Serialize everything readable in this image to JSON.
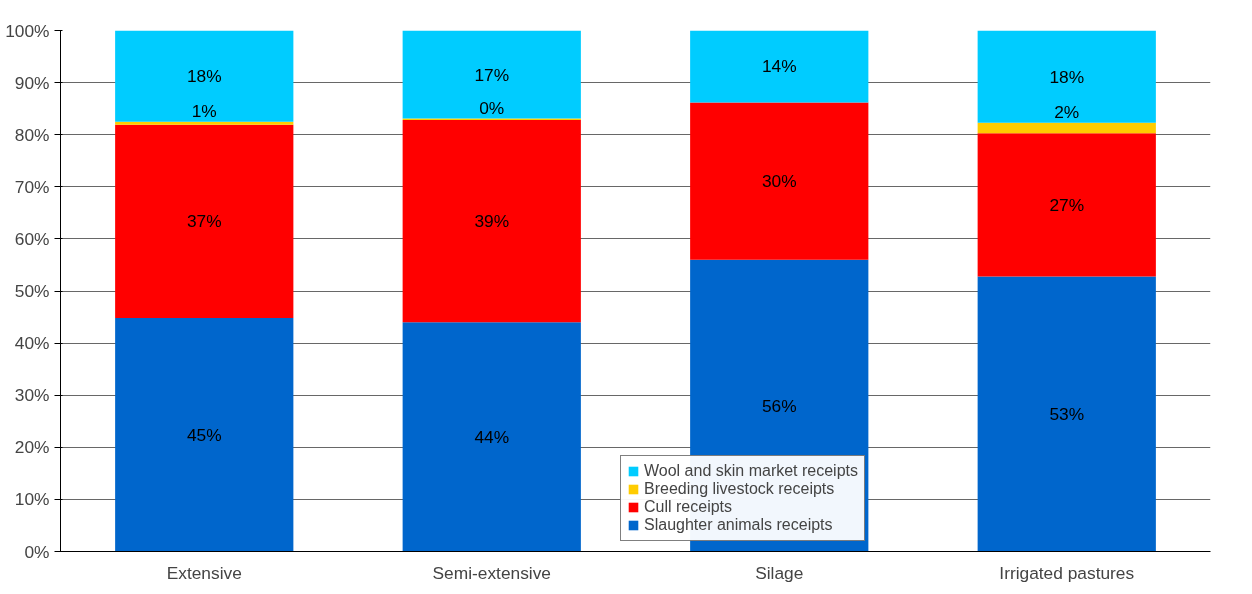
{
  "chart_data": {
    "type": "bar",
    "stacked": true,
    "categories": [
      "Extensive",
      "Semi-extensive",
      "Silage",
      "Irrigated pastures"
    ],
    "series": [
      {
        "name": "Slaughter animals receipts",
        "color": "#0066cc",
        "values": [
          44.8,
          44.0,
          56.0,
          52.8
        ],
        "value_labels": [
          "45%",
          "44%",
          "56%",
          "53%"
        ]
      },
      {
        "name": "Cull receipts",
        "color": "#ff0000",
        "values": [
          37.1,
          38.8,
          30.2,
          27.5
        ],
        "value_labels": [
          "37%",
          "39%",
          "30%",
          "27%"
        ]
      },
      {
        "name": "Breeding livestock receipts",
        "color": "#ffcc00",
        "values": [
          0.6,
          0.3,
          0,
          2.0
        ],
        "value_labels": [
          "1%",
          "0%",
          null,
          "2%"
        ]
      },
      {
        "name": "Wool and skin market receipts",
        "color": "#00ccff",
        "values": [
          17.5,
          16.9,
          13.8,
          17.7
        ],
        "value_labels": [
          "18%",
          "17%",
          "14%",
          "18%"
        ]
      }
    ],
    "ylim": [
      0,
      100
    ],
    "yticks": [
      {
        "value": 0,
        "label": "0%"
      },
      {
        "value": 10,
        "label": "10%"
      },
      {
        "value": 20,
        "label": "20%"
      },
      {
        "value": 30,
        "label": "30%"
      },
      {
        "value": 40,
        "label": "40%"
      },
      {
        "value": 50,
        "label": "50%"
      },
      {
        "value": 60,
        "label": "60%"
      },
      {
        "value": 70,
        "label": "70%"
      },
      {
        "value": 80,
        "label": "80%"
      },
      {
        "value": 90,
        "label": "90%"
      },
      {
        "value": 100,
        "label": "100%"
      }
    ],
    "grid": "y",
    "legend": "bottom"
  }
}
